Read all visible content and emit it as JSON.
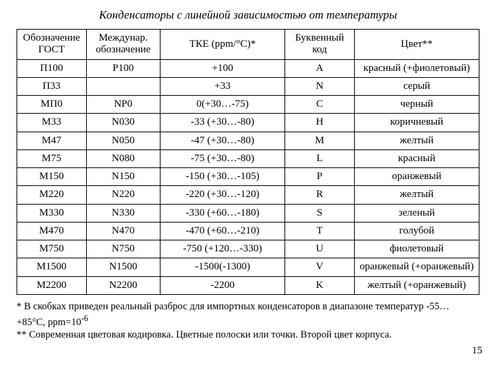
{
  "title": "Конденсаторы с линейной зависимостью от температуры",
  "columns": [
    "Обозначение ГОСТ",
    "Междунар. обозначение",
    "ТКЕ (ppm/°С)*",
    "Буквенный код",
    "Цвет**"
  ],
  "rows": [
    [
      "П100",
      "P100",
      "+100",
      "A",
      "красный (+фиолетовый)"
    ],
    [
      "П33",
      "",
      "+33",
      "N",
      "серый"
    ],
    [
      "МП0",
      "NP0",
      "0(+30…-75)",
      "C",
      "черный"
    ],
    [
      "М33",
      "N030",
      "-33 (+30…-80)",
      "H",
      "коричневый"
    ],
    [
      "М47",
      "N050",
      "-47 (+30…-80)",
      "M",
      "желтый"
    ],
    [
      "М75",
      "N080",
      "-75 (+30…-80)",
      "L",
      "красный"
    ],
    [
      "М150",
      "N150",
      "-150 (+30…-105)",
      "P",
      "оранжевый"
    ],
    [
      "М220",
      "N220",
      "-220 (+30…-120)",
      "R",
      "желтый"
    ],
    [
      "М330",
      "N330",
      "-330 (+60…-180)",
      "S",
      "зеленый"
    ],
    [
      "М470",
      "N470",
      "-470 (+60…-210)",
      "T",
      "голубой"
    ],
    [
      "М750",
      "N750",
      "-750 (+120…-330)",
      "U",
      "фиолетовый"
    ],
    [
      "М1500",
      "N1500",
      "-1500(-1300)",
      "V",
      "оранжевый (+оранжевый)"
    ],
    [
      "М2200",
      "N2200",
      "-2200",
      "K",
      "желтый (+оранжевый)"
    ]
  ],
  "footnote1": "* В скобках приведен реальный разброс для импортных конденсаторов в диапазоне температур -55…+85°С,   ppm=10",
  "footnote1_sup": "-6",
  "footnote2": "** Современная цветовая кодировка. Цветные полоски или точки. Второй цвет корпуса.",
  "pagenum": "15"
}
